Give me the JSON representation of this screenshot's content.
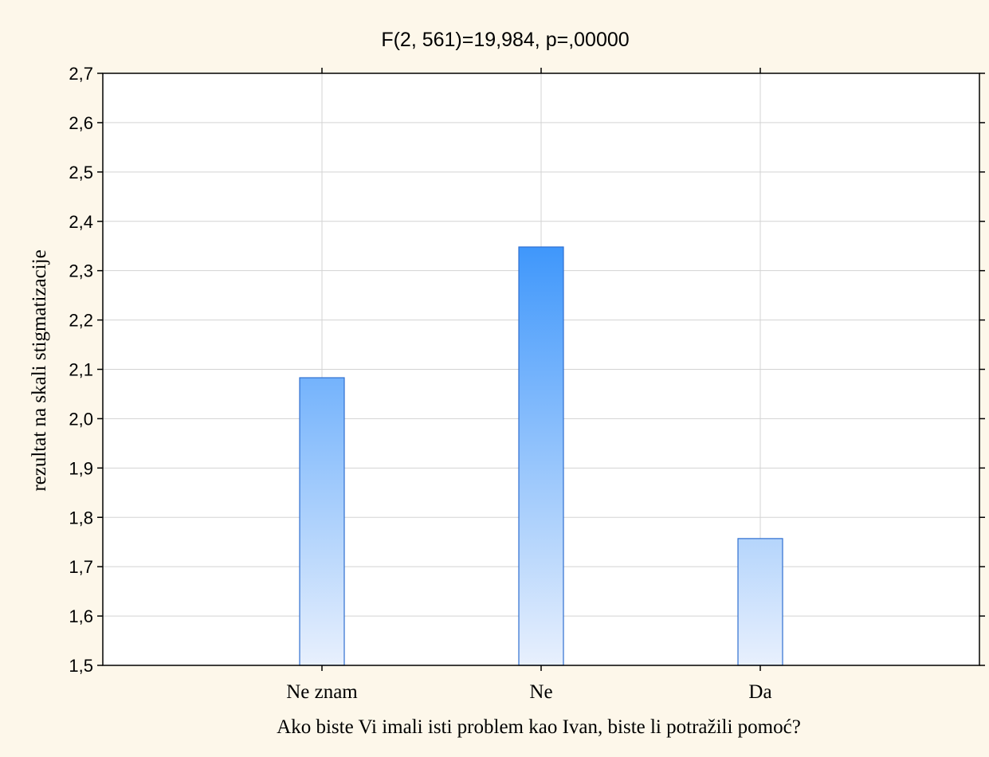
{
  "chart_data": {
    "type": "bar",
    "title": "F(2, 561)=19,984, p=,00000",
    "xlabel": "Ako biste Vi imali isti problem kao Ivan, biste li potražili pomoć?",
    "ylabel": "rezultat  na skali  stigmatizacije",
    "categories": [
      "Ne znam",
      "Ne",
      "Da"
    ],
    "values": [
      2.083,
      2.348,
      1.757
    ],
    "ylim": [
      1.5,
      2.7
    ],
    "yticks": [
      "1,5",
      "1,6",
      "1,7",
      "1,8",
      "1,9",
      "2,0",
      "2,1",
      "2,2",
      "2,3",
      "2,4",
      "2,5",
      "2,6",
      "2,7"
    ],
    "grid": true,
    "legend": "none"
  },
  "colors": {
    "background": "#fdf7ea",
    "plot_background": "#ffffff",
    "bar_top": "#3f97fb",
    "bar_bottom": "#e8f0fd",
    "bar_stroke": "#2f6fd0",
    "grid": "#d3d3d3"
  }
}
